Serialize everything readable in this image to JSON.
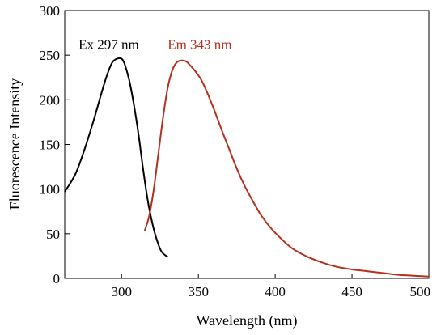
{
  "chart_data": {
    "type": "line",
    "title": "",
    "xlabel": "Wavelength (nm)",
    "ylabel": "Fluorescence Intensity",
    "xlim": [
      263,
      500
    ],
    "ylim": [
      0,
      300
    ],
    "xticks": [
      300,
      350,
      400,
      450,
      500
    ],
    "yticks": [
      0,
      50,
      100,
      150,
      200,
      250,
      300
    ],
    "grid": false,
    "series": [
      {
        "name": "Ex 297 nm",
        "color": "#000000",
        "x": [
          263,
          270,
          276,
          282,
          287,
          291,
          294,
          297,
          300,
          302,
          305,
          308,
          311,
          314,
          317,
          320,
          323,
          326,
          330
        ],
        "y": [
          97,
          117,
          145,
          178,
          208,
          230,
          242,
          246,
          246,
          240,
          222,
          195,
          162,
          123,
          88,
          62,
          43,
          30,
          24
        ]
      },
      {
        "name": "Em 343 nm",
        "color": "#b5301e",
        "x": [
          315,
          318,
          321,
          324,
          327,
          330,
          333,
          336,
          339,
          342,
          345,
          348,
          352,
          356,
          360,
          365,
          370,
          375,
          380,
          385,
          390,
          395,
          400,
          410,
          420,
          430,
          440,
          450,
          460,
          470,
          480,
          490,
          500
        ],
        "y": [
          53,
          70,
          100,
          140,
          180,
          213,
          233,
          242,
          244,
          243,
          238,
          232,
          222,
          207,
          190,
          167,
          145,
          123,
          104,
          88,
          73,
          61,
          51,
          35,
          25,
          18,
          13,
          10,
          8,
          6,
          4,
          3,
          2
        ]
      }
    ],
    "annotations": [
      {
        "text": "Ex 297 nm",
        "x": 272,
        "y": 257,
        "color": "#000000"
      },
      {
        "text": "Em 343 nm",
        "x": 330,
        "y": 257,
        "color": "#b5301e"
      }
    ]
  }
}
